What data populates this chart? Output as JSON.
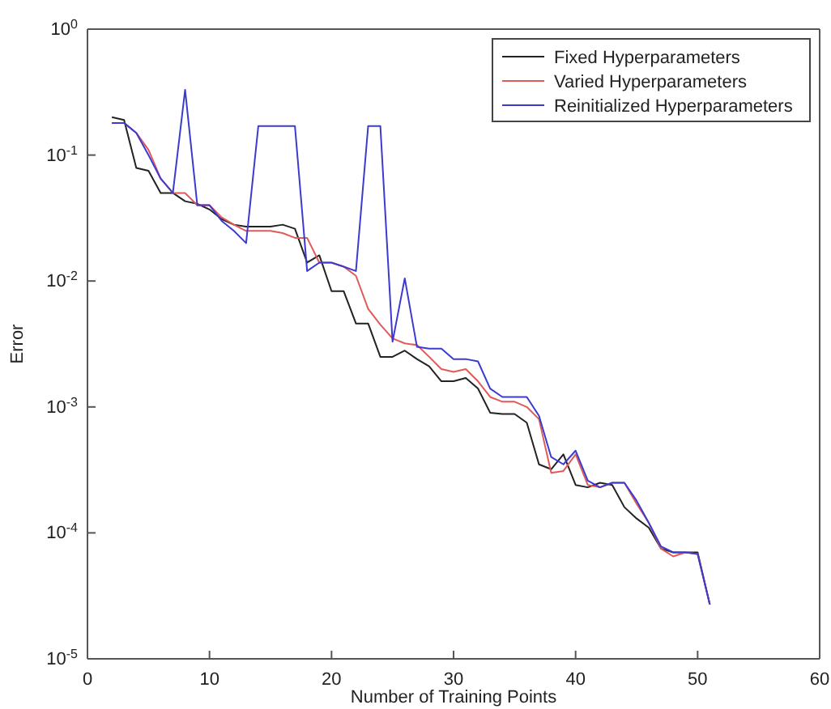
{
  "chart_data": {
    "type": "line",
    "xlabel": "Number of Training Points",
    "ylabel": "Error",
    "log": "y",
    "legend": "top right",
    "grid": false,
    "line_style": "solid",
    "marker": "none",
    "x": [
      2,
      3,
      4,
      5,
      6,
      7,
      8,
      9,
      10,
      11,
      12,
      13,
      14,
      15,
      16,
      17,
      18,
      19,
      20,
      21,
      22,
      23,
      24,
      25,
      26,
      27,
      28,
      29,
      30,
      31,
      32,
      33,
      34,
      35,
      36,
      37,
      38,
      39,
      40,
      41,
      42,
      43,
      44,
      45,
      46,
      47,
      48,
      49,
      50,
      51
    ],
    "xlim": [
      0,
      60
    ],
    "xticks": [
      0,
      10,
      20,
      30,
      40,
      50,
      60
    ],
    "ylim": [
      1e-05,
      1
    ],
    "yticks": [
      {
        "value": 1e-05,
        "label": "10$^{-5}$"
      },
      {
        "value": 0.0001,
        "label": "10$^{-4}$"
      },
      {
        "value": 0.001,
        "label": "10$^{-3}$"
      },
      {
        "value": 0.01,
        "label": "10$^{-2}$"
      },
      {
        "value": 0.1,
        "label": "10$^{-1}$"
      },
      {
        "value": 1,
        "label": "10$^{0}$"
      }
    ],
    "series": [
      {
        "name": "Fixed Hyperparameters",
        "color": "#222222",
        "values": [
          0.2,
          0.19,
          0.079,
          0.075,
          0.05,
          0.05,
          0.043,
          0.041,
          0.037,
          0.031,
          0.028,
          0.027,
          0.027,
          0.027,
          0.028,
          0.026,
          0.014,
          0.016,
          0.0083,
          0.0083,
          0.0046,
          0.0046,
          0.0025,
          0.0025,
          0.0028,
          0.0024,
          0.0021,
          0.0016,
          0.0016,
          0.0017,
          0.0014,
          0.0009,
          0.00088,
          0.00088,
          0.00075,
          0.00035,
          0.00032,
          0.00042,
          0.00024,
          0.00023,
          0.00025,
          0.00024,
          0.00016,
          0.00013,
          0.00011,
          7.5e-05,
          7e-05,
          7e-05,
          7e-05,
          2.7e-05
        ]
      },
      {
        "name": "Varied Hyperparameters",
        "color": "#e05a5a",
        "values": [
          0.18,
          0.18,
          0.15,
          0.11,
          0.065,
          0.05,
          0.05,
          0.04,
          0.04,
          0.032,
          0.028,
          0.025,
          0.025,
          0.025,
          0.024,
          0.022,
          0.022,
          0.014,
          0.014,
          0.013,
          0.011,
          0.006,
          0.0045,
          0.0035,
          0.0032,
          0.0031,
          0.0025,
          0.002,
          0.0019,
          0.002,
          0.0016,
          0.0012,
          0.0011,
          0.0011,
          0.001,
          0.0008,
          0.0003,
          0.00031,
          0.00042,
          0.00024,
          0.00023,
          0.00025,
          0.00025,
          0.00017,
          0.00012,
          7.5e-05,
          6.5e-05,
          7e-05,
          6.8e-05,
          2.7e-05
        ]
      },
      {
        "name": "Reinitialized Hyperparameters",
        "color": "#3b3bd0",
        "values": [
          0.18,
          0.18,
          0.15,
          0.1,
          0.065,
          0.05,
          0.33,
          0.04,
          0.04,
          0.03,
          0.025,
          0.02,
          0.17,
          0.17,
          0.17,
          0.17,
          0.012,
          0.014,
          0.014,
          0.013,
          0.012,
          0.17,
          0.17,
          0.0033,
          0.0105,
          0.003,
          0.0029,
          0.0029,
          0.0024,
          0.0024,
          0.0023,
          0.0014,
          0.0012,
          0.0012,
          0.0012,
          0.00085,
          0.0004,
          0.00035,
          0.00045,
          0.00026,
          0.00023,
          0.00025,
          0.00025,
          0.00018,
          0.00012,
          7.8e-05,
          7e-05,
          7e-05,
          6.8e-05,
          2.7e-05
        ]
      }
    ]
  }
}
